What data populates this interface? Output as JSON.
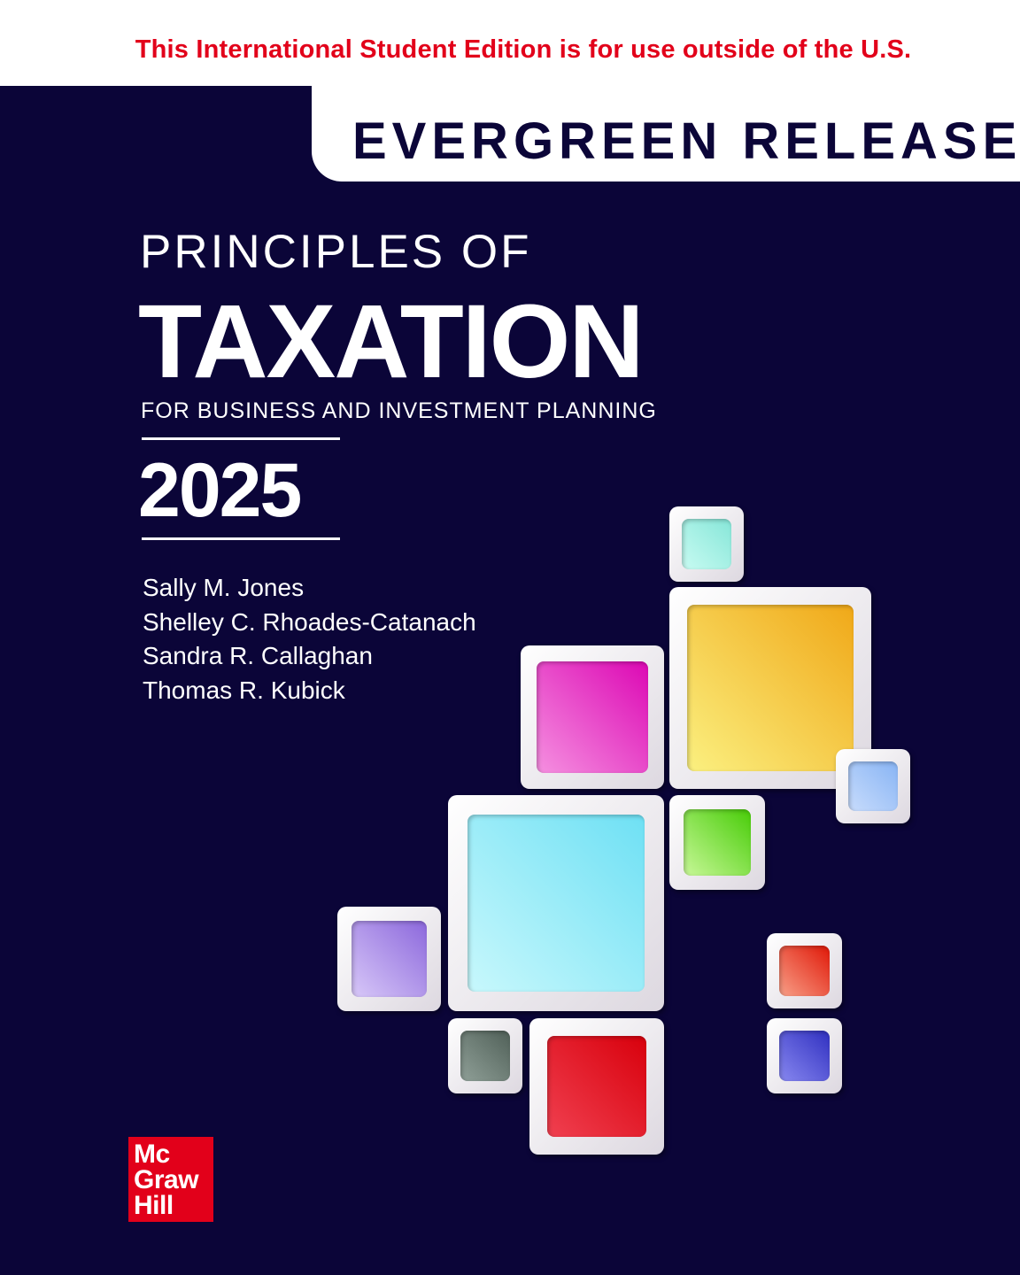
{
  "notice": "This International Student Edition is for use outside of the U.S.",
  "release": "EVERGREEN RELEASE",
  "title": {
    "line1": "PRINCIPLES OF",
    "line2": "TAXATION",
    "subtitle": "FOR BUSINESS AND INVESTMENT PLANNING",
    "year": "2025"
  },
  "authors": [
    "Sally M. Jones",
    "Shelley C. Rhoades-Catanach",
    "Sandra R. Callaghan",
    "Thomas R. Kubick"
  ],
  "publisher": {
    "line1": "Mc",
    "line2": "Graw",
    "line3": "Hill"
  },
  "colors": {
    "background": "#0b0538",
    "notice": "#e2001a",
    "logo": "#e2001a"
  },
  "tiles": [
    {
      "from": "#c8fbf2",
      "to": "#86e6d8"
    },
    {
      "from": "#fbf080",
      "to": "#f0a818"
    },
    {
      "from": "#f590e0",
      "to": "#dc08b4"
    },
    {
      "from": "#c8dcfc",
      "to": "#88b4f4"
    },
    {
      "from": "#c8f898",
      "to": "#48cc08"
    },
    {
      "from": "#c8f8fc",
      "to": "#6ee0f4"
    },
    {
      "from": "#d8c8f8",
      "to": "#8c68dc"
    },
    {
      "from": "#f8a088",
      "to": "#e01808"
    },
    {
      "from": "#90a098",
      "to": "#506058"
    },
    {
      "from": "#f04050",
      "to": "#d8000c"
    },
    {
      "from": "#8888f0",
      "to": "#3030c0"
    }
  ]
}
